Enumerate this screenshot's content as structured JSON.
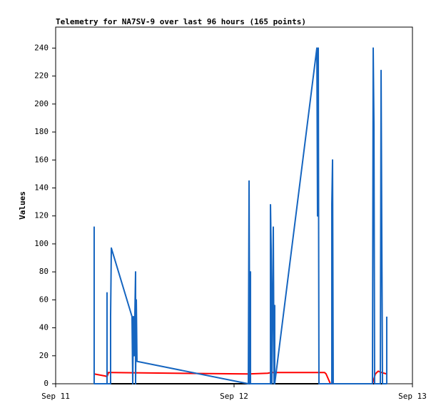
{
  "chart_data": {
    "type": "line",
    "title": "Telemetry for NA7SV-9 over last 96 hours (165 points)",
    "y_label": "Values",
    "xlim": [
      0,
      48
    ],
    "xticks": [
      {
        "value": 0,
        "label": "Sep 11"
      },
      {
        "value": 24,
        "label": "Sep 12"
      },
      {
        "value": 48,
        "label": "Sep 13"
      }
    ],
    "ylim": [
      0,
      255
    ],
    "yticks": [
      0,
      20,
      40,
      60,
      80,
      100,
      120,
      140,
      160,
      180,
      200,
      220,
      240
    ],
    "grid": false,
    "series": [
      {
        "color": "#000000",
        "x": [
          5.18,
          44.54
        ],
        "values": [
          0,
          0
        ]
      },
      {
        "color": "#ff0000",
        "x": [
          5.18,
          6.72,
          6.91,
          7.1,
          7.39,
          25.92,
          28.51,
          28.99,
          35.71,
          36.19,
          36.38,
          36.96,
          42.62,
          43.01,
          43.39,
          43.87,
          44.54
        ],
        "values": [
          7,
          5.5,
          5,
          8,
          8,
          7,
          7.5,
          8,
          8,
          8,
          7,
          0,
          0,
          7,
          9,
          8,
          7
        ]
      },
      {
        "color": "#1565c0",
        "x": [
          5.18,
          5.18,
          5.18,
          6.91,
          6.91,
          6.91,
          6.91,
          7.39,
          7.39,
          7.49,
          10.27,
          10.37,
          10.46,
          10.56,
          10.75,
          10.75,
          10.85,
          10.94,
          25.92,
          26.02,
          26.11,
          26.21,
          26.21,
          28.9,
          28.9,
          28.99,
          29.09,
          29.18,
          29.28,
          29.38,
          29.47,
          29.47,
          35.14,
          35.23,
          35.33,
          35.42,
          37.15,
          37.15,
          37.25,
          37.34,
          42.62,
          42.72,
          42.82,
          42.91,
          43.68,
          43.78,
          43.87,
          43.97,
          44.54,
          44.54
        ],
        "values": [
          0,
          112,
          0,
          0,
          65,
          32,
          0,
          0,
          48,
          97,
          48,
          0,
          48,
          20,
          80,
          0,
          60,
          16,
          0,
          145,
          0,
          80,
          0,
          0,
          128,
          96,
          0,
          56,
          112,
          0,
          56,
          0,
          240,
          120,
          240,
          0,
          0,
          128,
          160,
          0,
          0,
          240,
          184,
          0,
          0,
          224,
          112,
          0,
          0,
          48
        ]
      }
    ]
  }
}
